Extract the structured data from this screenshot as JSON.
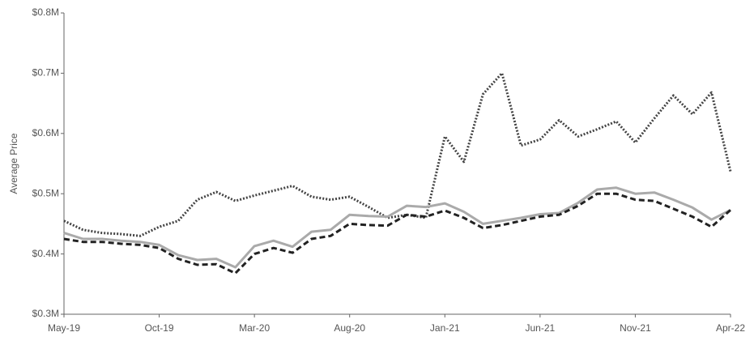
{
  "chart_data": {
    "type": "line",
    "y_label": "Average Price",
    "categories": [
      "May-19",
      null,
      null,
      null,
      null,
      "Oct-19",
      null,
      null,
      null,
      null,
      "Mar-20",
      null,
      null,
      null,
      null,
      "Aug-20",
      null,
      null,
      null,
      null,
      "Jan-21",
      null,
      null,
      null,
      null,
      "Jun-21",
      null,
      null,
      null,
      null,
      "Nov-21",
      null,
      null,
      null,
      null,
      "Apr-22"
    ],
    "ylim": [
      0.3,
      0.8
    ],
    "yticks": [
      {
        "value": 0.3,
        "label": "$0.3M"
      },
      {
        "value": 0.4,
        "label": "$0.4M"
      },
      {
        "value": 0.5,
        "label": "$0.5M"
      },
      {
        "value": 0.6,
        "label": "$0.6M"
      },
      {
        "value": 0.7,
        "label": "$0.7M"
      },
      {
        "value": 0.8,
        "label": "$0.8M"
      }
    ],
    "series": [
      {
        "color": "#444444",
        "style": "dotted",
        "values": [
          0.455,
          0.44,
          0.435,
          0.433,
          0.43,
          0.445,
          0.455,
          0.49,
          0.503,
          0.488,
          0.497,
          0.505,
          0.513,
          0.495,
          0.49,
          0.495,
          0.478,
          0.46,
          0.465,
          0.46,
          0.595,
          0.553,
          0.665,
          0.7,
          0.58,
          0.59,
          0.622,
          0.595,
          0.607,
          0.62,
          0.585,
          0.625,
          0.663,
          0.632,
          0.668,
          0.537
        ]
      },
      {
        "color": "#aaaaaa",
        "style": "solid",
        "values": [
          0.435,
          0.425,
          0.425,
          0.422,
          0.42,
          0.415,
          0.398,
          0.39,
          0.392,
          0.378,
          0.413,
          0.422,
          0.412,
          0.437,
          0.44,
          0.465,
          0.463,
          0.462,
          0.48,
          0.478,
          0.484,
          0.47,
          0.45,
          0.455,
          0.46,
          0.466,
          0.468,
          0.485,
          0.507,
          0.51,
          0.5,
          0.502,
          0.49,
          0.477,
          0.457,
          0.473
        ]
      },
      {
        "color": "#222222",
        "style": "dashed",
        "values": [
          0.425,
          0.42,
          0.42,
          0.417,
          0.415,
          0.41,
          0.392,
          0.382,
          0.383,
          0.368,
          0.4,
          0.41,
          0.402,
          0.425,
          0.43,
          0.45,
          0.448,
          0.447,
          0.465,
          0.462,
          0.472,
          0.46,
          0.443,
          0.448,
          0.455,
          0.462,
          0.465,
          0.48,
          0.5,
          0.5,
          0.49,
          0.488,
          0.475,
          0.462,
          0.445,
          0.473
        ]
      }
    ]
  }
}
